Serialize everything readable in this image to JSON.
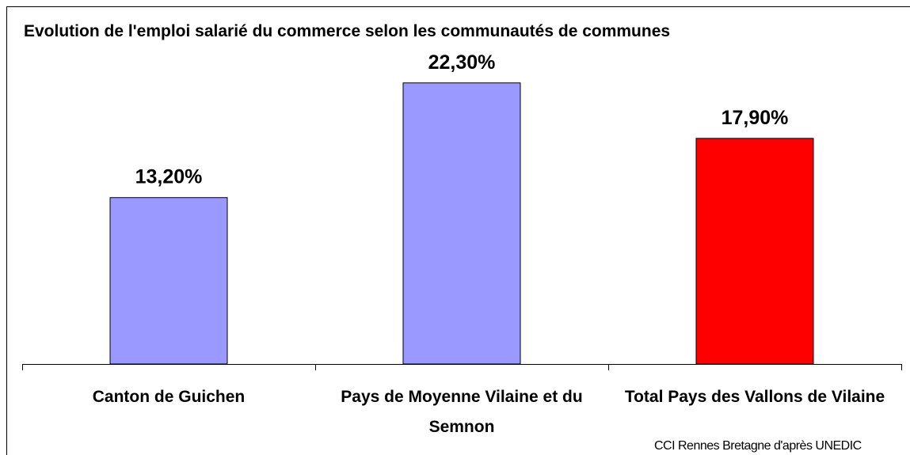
{
  "chart_data": {
    "type": "bar",
    "title": "Evolution de l'emploi salarié du commerce selon les communautés de communes",
    "categories": [
      "Canton de Guichen",
      "Pays de Moyenne Vilaine et du Semnon",
      "Total Pays des Vallons de Vilaine"
    ],
    "values": [
      13.2,
      22.3,
      17.9
    ],
    "value_labels": [
      "13,20%",
      "22,30%",
      "17,90%"
    ],
    "colors": [
      "#9999ff",
      "#9999ff",
      "#ff0000"
    ],
    "source": "CCI Rennes Bretagne d'après UNEDIC"
  }
}
